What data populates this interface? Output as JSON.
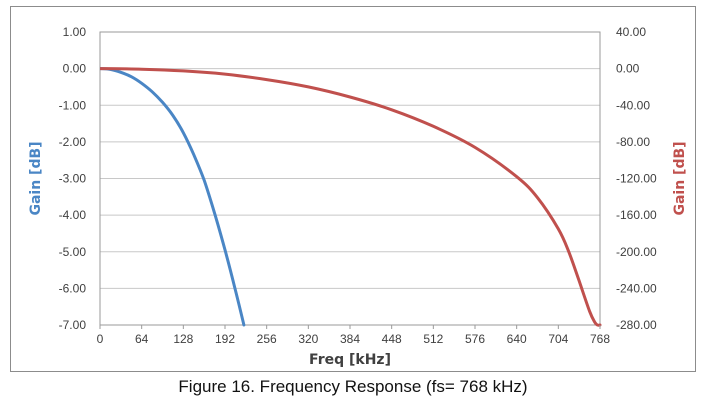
{
  "caption": "Figure 16. Frequency Response  (fs= 768 kHz)",
  "chart_data": {
    "type": "line",
    "title": "",
    "xlabel": "Freq [kHz]",
    "ylabel_left": "Gain [dB]",
    "ylabel_right": "Gain [dB]",
    "xlim": [
      0,
      768
    ],
    "ylim_left": [
      -7,
      1
    ],
    "ylim_right": [
      -280,
      40
    ],
    "x_ticks": [
      "0",
      "64",
      "128",
      "192",
      "256",
      "320",
      "384",
      "448",
      "512",
      "576",
      "640",
      "704",
      "768"
    ],
    "y_ticks_left": [
      "1.00",
      "0.00",
      "-1.00",
      "-2.00",
      "-3.00",
      "-4.00",
      "-5.00",
      "-6.00",
      "-7.00"
    ],
    "y_ticks_right": [
      "40.00",
      "0.00",
      "-40.00",
      "-80.00",
      "-120.00",
      "-160.00",
      "-200.00",
      "-240.00",
      "-280.00"
    ],
    "grid": "horizontal",
    "legend": "none",
    "series": [
      {
        "axis": "left",
        "color": "#4a86c5",
        "x": [
          0,
          16,
          32,
          48,
          64,
          80,
          96,
          112,
          128,
          144,
          160,
          176,
          192,
          208,
          221
        ],
        "y": [
          0,
          -0.02,
          -0.1,
          -0.22,
          -0.4,
          -0.63,
          -0.92,
          -1.28,
          -1.75,
          -2.35,
          -3.05,
          -3.95,
          -4.95,
          -6.05,
          -7.0
        ]
      },
      {
        "axis": "right",
        "color": "#c0504d",
        "x": [
          0,
          64,
          128,
          192,
          256,
          320,
          384,
          448,
          512,
          576,
          640,
          672,
          704,
          720,
          736,
          752,
          760,
          764,
          768
        ],
        "y": [
          0,
          -0.6,
          -2.5,
          -6,
          -12,
          -20,
          -31,
          -45,
          -63,
          -86,
          -118,
          -141,
          -175,
          -200,
          -232,
          -265,
          -277,
          -280,
          -280
        ]
      }
    ]
  }
}
